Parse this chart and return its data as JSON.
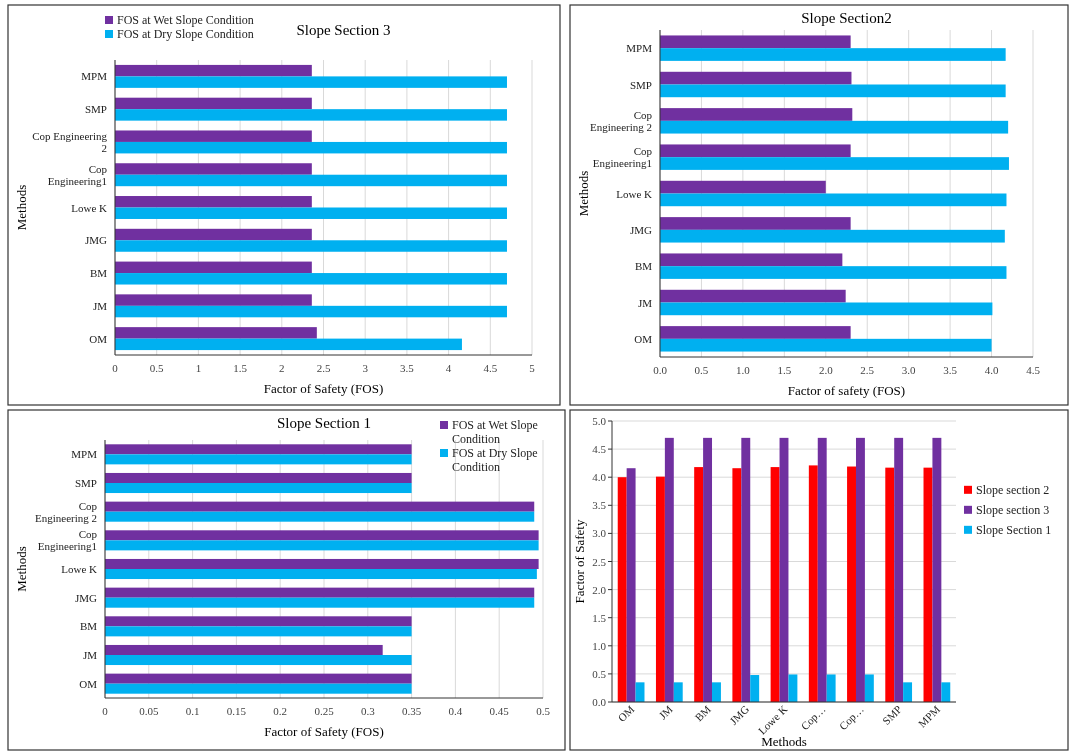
{
  "chart_data": [
    {
      "type": "bar",
      "orientation": "horizontal",
      "title": "Slope Section 3",
      "xlabel": "Factor of Safety (FOS)",
      "ylabel": "Methods",
      "categories": [
        "MPM",
        "SMP",
        "Cop Engineering 2",
        "Cop Engineering1",
        "Lowe K",
        "JMG",
        "BM",
        "JM",
        "OM"
      ],
      "series": [
        {
          "name": "FOS at Wet Slope Condition",
          "color": "#7030a0",
          "values": [
            2.36,
            2.36,
            2.36,
            2.36,
            2.36,
            2.36,
            2.36,
            2.36,
            2.42
          ]
        },
        {
          "name": "FOS at Dry Slope Condition",
          "color": "#00b0f0",
          "values": [
            4.7,
            4.7,
            4.7,
            4.7,
            4.7,
            4.7,
            4.7,
            4.7,
            4.16
          ]
        }
      ],
      "xlim": [
        0,
        5
      ],
      "xticks": [
        0,
        0.5,
        1,
        1.5,
        2,
        2.5,
        3,
        3.5,
        4,
        4.5,
        5
      ],
      "grid": "x",
      "legend": "top left"
    },
    {
      "type": "bar",
      "orientation": "horizontal",
      "title": "Slope Section2",
      "xlabel": "Factor of safety (FOS)",
      "ylabel": "Methods",
      "categories": [
        "MPM",
        "SMP",
        "Cop Engineering 2",
        "Cop Engineering1",
        "Lowe K",
        "JMG",
        "BM",
        "JM",
        "OM"
      ],
      "series": [
        {
          "color": "#7030a0",
          "values": [
            2.3,
            2.31,
            2.32,
            2.3,
            2.0,
            2.3,
            2.2,
            2.24,
            2.3
          ]
        },
        {
          "color": "#00b0f0",
          "values": [
            4.17,
            4.17,
            4.2,
            4.21,
            4.18,
            4.16,
            4.18,
            4.01,
            4.0
          ]
        }
      ],
      "xlim": [
        0,
        4.5
      ],
      "xticks": [
        {
          "value": 0,
          "label": "0.0"
        },
        {
          "value": 0.5,
          "label": "0.5"
        },
        {
          "value": 1,
          "label": "1.0"
        },
        {
          "value": 1.5,
          "label": "1.5"
        },
        {
          "value": 2,
          "label": "2.0"
        },
        {
          "value": 2.5,
          "label": "2.5"
        },
        {
          "value": 3,
          "label": "3.0"
        },
        {
          "value": 3.5,
          "label": "3.5"
        },
        {
          "value": 4,
          "label": "4.0"
        },
        {
          "value": 4.5,
          "label": "4.5"
        }
      ],
      "grid": "x"
    },
    {
      "type": "bar",
      "orientation": "horizontal",
      "title": "Slope Section 1",
      "xlabel": "Factor of Safety (FOS)",
      "ylabel": "Methods",
      "categories": [
        "MPM",
        "SMP",
        "Cop Engineering 2",
        "Cop Engineering1",
        "Lowe K",
        "JMG",
        "BM",
        "JM",
        "OM"
      ],
      "series": [
        {
          "name": "FOS at Wet Slope Condition",
          "color": "#7030a0",
          "values": [
            0.35,
            0.35,
            0.49,
            0.495,
            0.495,
            0.49,
            0.35,
            0.317,
            0.35
          ]
        },
        {
          "name": "FOS at Dry Slope Condition",
          "color": "#00b0f0",
          "values": [
            0.35,
            0.35,
            0.49,
            0.495,
            0.493,
            0.49,
            0.35,
            0.35,
            0.35
          ]
        }
      ],
      "xlim": [
        0,
        0.5
      ],
      "xticks": [
        0,
        0.05,
        0.1,
        0.15,
        0.2,
        0.25,
        0.3,
        0.35,
        0.4,
        0.45,
        0.5
      ],
      "grid": "x",
      "legend": "top right"
    },
    {
      "type": "bar",
      "xlabel": "Methods",
      "ylabel": "Factor of Safety",
      "categories": [
        "OM",
        "JM",
        "BM",
        "JMG",
        "Lowe K",
        "Cop…",
        "Cop…",
        "SMP",
        "MPM"
      ],
      "series": [
        {
          "name": "Slope section 2",
          "color": "#ff0000",
          "values": [
            4.0,
            4.01,
            4.18,
            4.16,
            4.18,
            4.21,
            4.19,
            4.17,
            4.17
          ]
        },
        {
          "name": "Slope section 3",
          "color": "#7030a0",
          "values": [
            4.16,
            4.7,
            4.7,
            4.7,
            4.7,
            4.7,
            4.7,
            4.7,
            4.7
          ]
        },
        {
          "name": "Slope Section 1",
          "color": "#00b0f0",
          "values": [
            0.35,
            0.35,
            0.35,
            0.48,
            0.49,
            0.49,
            0.49,
            0.35,
            0.35
          ]
        }
      ],
      "ylim": [
        0,
        5
      ],
      "yticks": [
        {
          "value": 0,
          "label": "0.0"
        },
        {
          "value": 0.5,
          "label": "0.5"
        },
        {
          "value": 1,
          "label": "1.0"
        },
        {
          "value": 1.5,
          "label": "1.5"
        },
        {
          "value": 2,
          "label": "2.0"
        },
        {
          "value": 2.5,
          "label": "2.5"
        },
        {
          "value": 3,
          "label": "3.0"
        },
        {
          "value": 3.5,
          "label": "3.5"
        },
        {
          "value": 4,
          "label": "4.0"
        },
        {
          "value": 4.5,
          "label": "4.5"
        },
        {
          "value": 5,
          "label": "5.0"
        }
      ],
      "grid": "y",
      "legend": "right"
    }
  ]
}
